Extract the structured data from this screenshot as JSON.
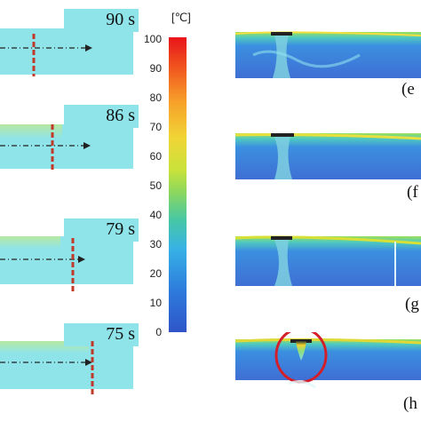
{
  "left_panels": [
    {
      "time": "90 s"
    },
    {
      "time": "86 s"
    },
    {
      "time": "79 s"
    },
    {
      "time": "75 s"
    }
  ],
  "colorbar": {
    "unit": "[℃]",
    "ticks": [
      "100",
      "90",
      "80",
      "70",
      "60",
      "50",
      "40",
      "30",
      "20",
      "10",
      "0"
    ]
  },
  "right_panels": [
    {
      "label": "(e"
    },
    {
      "label": "(f"
    },
    {
      "label": "(g"
    },
    {
      "label": "(h"
    }
  ],
  "colors": {
    "panel_cyan": "#8fe4ea",
    "field_blue": "#3f72d6",
    "arrow_dark": "#222222",
    "dash_red": "#c0392b",
    "circle_red": "#d21f2a"
  }
}
